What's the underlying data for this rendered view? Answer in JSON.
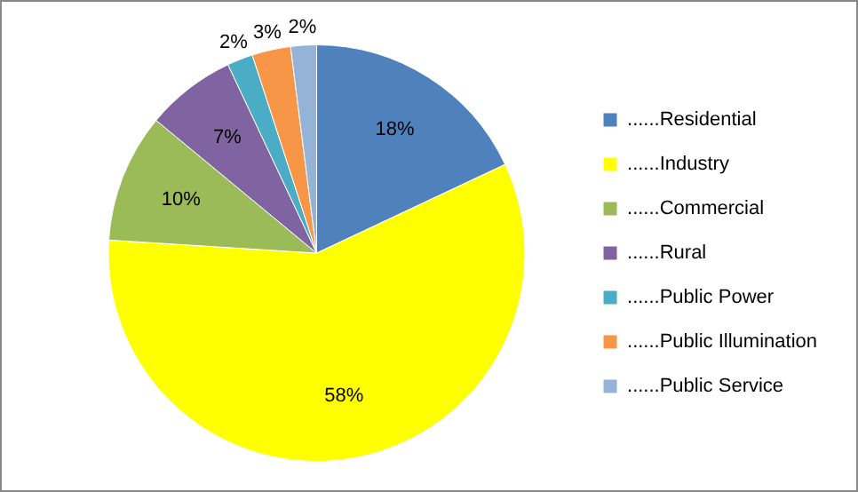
{
  "chart_data": {
    "type": "pie",
    "categories": [
      "......Residential",
      "......Industry",
      "......Commercial",
      "......Rural",
      "......Public Power",
      "......Public Illumination",
      "......Public Service"
    ],
    "values": [
      18,
      58,
      10,
      7,
      2,
      3,
      2
    ],
    "colors": [
      "#4f81bd",
      "#ffff00",
      "#9bbb59",
      "#8064a2",
      "#4bacc6",
      "#f79646",
      "#95b3d7"
    ],
    "value_labels": [
      "18%",
      "58%",
      "10%",
      "7%",
      "2%",
      "3%",
      "2%"
    ],
    "legend": "right"
  }
}
